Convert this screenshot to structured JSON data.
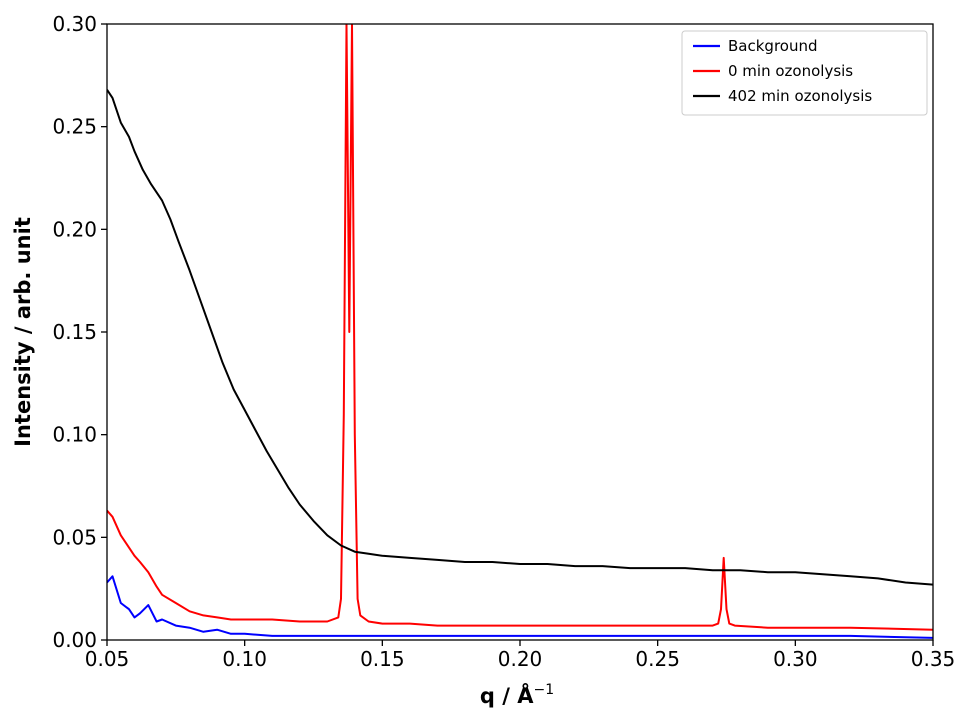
{
  "chart_data": {
    "type": "line",
    "title": "",
    "xlabel": "q / Å",
    "xlabel_superscript": "−1",
    "ylabel": "Intensity / arb. unit",
    "xlim": [
      0.05,
      0.35
    ],
    "ylim": [
      0.0,
      0.3
    ],
    "xticks": [
      "0.05",
      "0.10",
      "0.15",
      "0.20",
      "0.25",
      "0.30",
      "0.35"
    ],
    "yticks": [
      "0.00",
      "0.05",
      "0.10",
      "0.15",
      "0.20",
      "0.25",
      "0.30"
    ],
    "grid": false,
    "legend_position": "top-right",
    "series": [
      {
        "name": "Background",
        "color": "#0000ff",
        "x": [
          0.05,
          0.052,
          0.055,
          0.058,
          0.06,
          0.062,
          0.065,
          0.068,
          0.07,
          0.075,
          0.08,
          0.085,
          0.09,
          0.095,
          0.1,
          0.11,
          0.12,
          0.13,
          0.14,
          0.15,
          0.17,
          0.2,
          0.23,
          0.26,
          0.29,
          0.32,
          0.35
        ],
        "y": [
          0.028,
          0.031,
          0.018,
          0.015,
          0.011,
          0.013,
          0.017,
          0.009,
          0.01,
          0.007,
          0.006,
          0.004,
          0.005,
          0.003,
          0.003,
          0.002,
          0.002,
          0.002,
          0.002,
          0.002,
          0.002,
          0.002,
          0.002,
          0.002,
          0.002,
          0.002,
          0.001
        ]
      },
      {
        "name": "0 min ozonolysis",
        "color": "#ff0000",
        "x": [
          0.05,
          0.052,
          0.055,
          0.058,
          0.06,
          0.062,
          0.065,
          0.068,
          0.07,
          0.075,
          0.08,
          0.085,
          0.09,
          0.095,
          0.1,
          0.11,
          0.12,
          0.13,
          0.134,
          0.135,
          0.136,
          0.137,
          0.138,
          0.139,
          0.14,
          0.141,
          0.142,
          0.145,
          0.15,
          0.16,
          0.17,
          0.2,
          0.23,
          0.26,
          0.27,
          0.272,
          0.273,
          0.274,
          0.275,
          0.276,
          0.278,
          0.29,
          0.32,
          0.35
        ],
        "y": [
          0.063,
          0.06,
          0.051,
          0.045,
          0.041,
          0.038,
          0.033,
          0.026,
          0.022,
          0.018,
          0.014,
          0.012,
          0.011,
          0.01,
          0.01,
          0.01,
          0.009,
          0.009,
          0.011,
          0.02,
          0.11,
          0.3,
          0.15,
          0.3,
          0.1,
          0.02,
          0.012,
          0.009,
          0.008,
          0.008,
          0.007,
          0.007,
          0.007,
          0.007,
          0.007,
          0.008,
          0.015,
          0.04,
          0.015,
          0.008,
          0.007,
          0.006,
          0.006,
          0.005
        ]
      },
      {
        "name": "402 min ozonolysis",
        "color": "#000000",
        "x": [
          0.05,
          0.052,
          0.055,
          0.058,
          0.06,
          0.063,
          0.066,
          0.07,
          0.073,
          0.076,
          0.08,
          0.084,
          0.088,
          0.092,
          0.096,
          0.1,
          0.104,
          0.108,
          0.112,
          0.116,
          0.12,
          0.125,
          0.13,
          0.135,
          0.14,
          0.145,
          0.15,
          0.16,
          0.17,
          0.18,
          0.19,
          0.2,
          0.21,
          0.22,
          0.23,
          0.24,
          0.25,
          0.26,
          0.27,
          0.28,
          0.29,
          0.3,
          0.31,
          0.32,
          0.33,
          0.34,
          0.35
        ],
        "y": [
          0.268,
          0.264,
          0.252,
          0.245,
          0.238,
          0.229,
          0.222,
          0.214,
          0.205,
          0.194,
          0.18,
          0.165,
          0.15,
          0.135,
          0.122,
          0.112,
          0.102,
          0.092,
          0.083,
          0.074,
          0.066,
          0.058,
          0.051,
          0.046,
          0.043,
          0.042,
          0.041,
          0.04,
          0.039,
          0.038,
          0.038,
          0.037,
          0.037,
          0.036,
          0.036,
          0.035,
          0.035,
          0.035,
          0.034,
          0.034,
          0.033,
          0.033,
          0.032,
          0.031,
          0.03,
          0.028,
          0.027
        ]
      }
    ]
  }
}
